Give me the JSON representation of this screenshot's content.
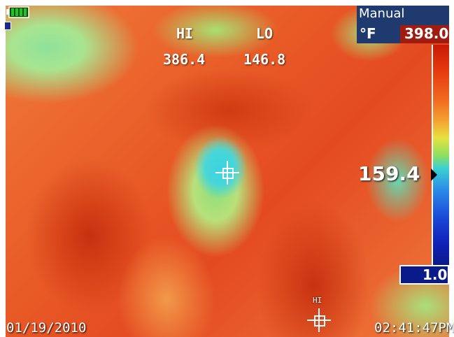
{
  "status": {
    "battery_icon": "battery-full-icon",
    "battery_color": "#22c322"
  },
  "readouts": {
    "hi_label": "HI",
    "hi_value": "386.4",
    "lo_label": "LO",
    "lo_value": "146.8"
  },
  "palette": {
    "mode": "Manual",
    "unit": "°F",
    "max": "398.0",
    "min": "1.0",
    "cursor_value": "159.4",
    "max_color": "#a01c10",
    "min_color": "#0a1a8a",
    "panel_color": "#1f3a6e"
  },
  "markers": {
    "hi_marker_label": "HI",
    "center_marker_icon": "crosshair-icon"
  },
  "footer": {
    "date": "01/19/2010",
    "time": "02:41:47PM"
  }
}
